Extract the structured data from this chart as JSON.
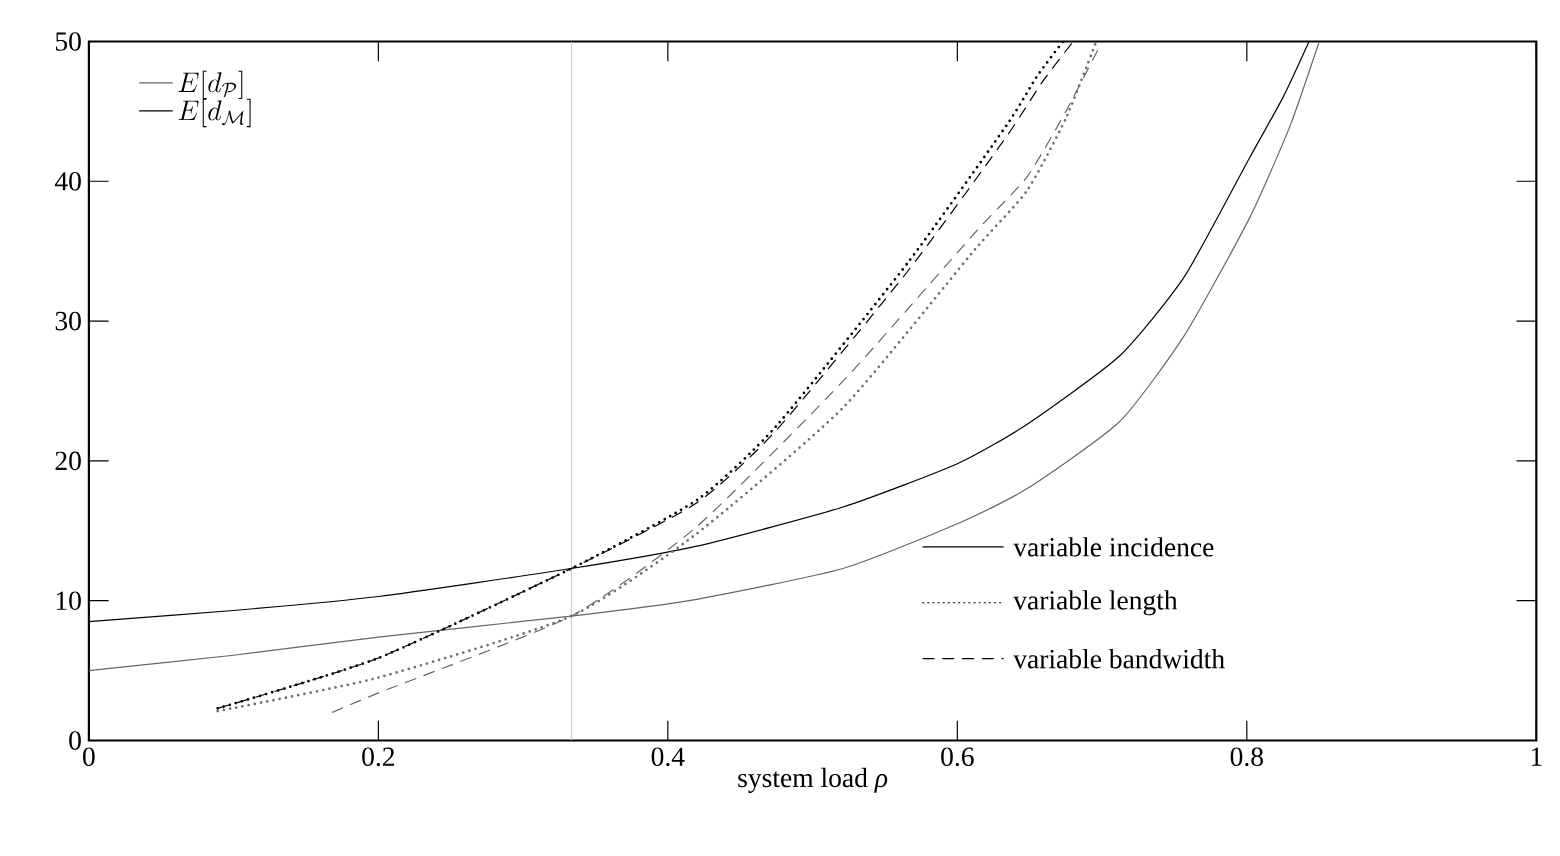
{
  "chart_data": {
    "type": "line",
    "xlabel": "system load *ρ*",
    "xlim": [
      0,
      1
    ],
    "ylim": [
      0,
      50
    ],
    "xticks": [
      0,
      0.2,
      0.4,
      0.6,
      0.8,
      1
    ],
    "yticks": [
      0,
      10,
      20,
      30,
      40,
      50
    ],
    "legend": "top left",
    "series": [
      {
        "name": "E[d_{\\mathcal{P}}]",
        "color": "#666666",
        "line_style": "solid",
        "x": [
          0,
          0.1,
          0.2,
          0.3333,
          0.42,
          0.521,
          0.6,
          0.648,
          0.712,
          0.757,
          0.802,
          0.83,
          0.85
        ],
        "values": [
          5.0,
          6.1,
          7.4,
          8.9,
          10.1,
          12.3,
          15.5,
          18.0,
          22.8,
          29.0,
          37.4,
          44.0,
          50
        ]
      },
      {
        "name": "E[d_{\\mathcal{M}}]",
        "color": "#000000",
        "line_style": "solid",
        "x": [
          0,
          0.1,
          0.2,
          0.3333,
          0.42,
          0.521,
          0.6,
          0.648,
          0.712,
          0.757,
          0.802,
          0.825,
          0.843
        ],
        "values": [
          8.5,
          9.3,
          10.3,
          12.3,
          13.9,
          16.7,
          19.8,
          22.6,
          27.5,
          33.2,
          41.7,
          46.0,
          50
        ]
      },
      {
        "color": "#707070",
        "line_style": "dotted",
        "x": [
          0.089,
          0.2,
          0.3333,
          0.42,
          0.521,
          0.612,
          0.648,
          0.675,
          0.696
        ],
        "values": [
          2.1,
          4.5,
          8.9,
          14.8,
          23.8,
          35.1,
          39.3,
          44.5,
          50
        ]
      },
      {
        "color": "#000000",
        "line_style": "dotted",
        "x": [
          0.089,
          0.2,
          0.3333,
          0.42,
          0.475,
          0.566,
          0.634,
          0.655,
          0.673
        ],
        "values": [
          2.3,
          5.9,
          12.3,
          17.2,
          22.5,
          34.2,
          44.0,
          47.5,
          50
        ]
      },
      {
        "color": "#666666",
        "line_style": "dashed",
        "x": [
          0.168,
          0.2,
          0.3333,
          0.42,
          0.521,
          0.612,
          0.648,
          0.675,
          0.7
        ],
        "values": [
          2.0,
          3.4,
          8.9,
          15.3,
          25.7,
          36.3,
          40.3,
          45.0,
          50
        ]
      },
      {
        "color": "#000000",
        "line_style": "dashed",
        "x": [
          0.089,
          0.2,
          0.3333,
          0.42,
          0.475,
          0.566,
          0.634,
          0.658,
          0.68
        ],
        "values": [
          2.3,
          5.9,
          12.3,
          17.0,
          22.2,
          33.6,
          43.2,
          47.0,
          50
        ]
      }
    ],
    "ref_lines": [
      {
        "axis": "x",
        "value": 0.3333,
        "color": "#c8c8c8"
      }
    ],
    "annotations": [
      "variable incidence",
      "variable length",
      "variable bandwidth"
    ]
  }
}
